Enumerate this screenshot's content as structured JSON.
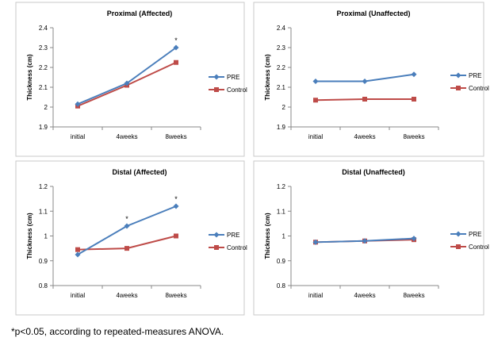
{
  "colors": {
    "pre": "#4A7EBB",
    "control": "#BE4B48",
    "axis": "#888888",
    "frame": "#C8C8C8"
  },
  "footnote": "*p<0.05, according to repeated-measures  ANOVA.",
  "chart_data": [
    {
      "type": "line",
      "title": "Proximal (Affected)",
      "xlabel": "",
      "ylabel": "Thickness (cm)",
      "categories": [
        "initial",
        "4weeks",
        "8weeks"
      ],
      "ylim": [
        1.9,
        2.4
      ],
      "yticks": [
        "1.9",
        "2",
        "2.1",
        "2.2",
        "2.3",
        "2.4"
      ],
      "series": [
        {
          "name": "PRE",
          "values": [
            2.015,
            2.12,
            2.3
          ]
        },
        {
          "name": "Control",
          "values": [
            2.005,
            2.11,
            2.225
          ]
        }
      ],
      "annotations": [
        {
          "category": "8weeks",
          "text": "*",
          "y": 2.3
        }
      ],
      "legend": "right"
    },
    {
      "type": "line",
      "title": "Proximal (Unaffected)",
      "xlabel": "",
      "ylabel": "Thickness (cm)",
      "categories": [
        "initial",
        "4weeks",
        "8weeks"
      ],
      "ylim": [
        1.9,
        2.4
      ],
      "yticks": [
        "1.9",
        "2",
        "2.1",
        "2.2",
        "2.3",
        "2.4"
      ],
      "series": [
        {
          "name": "PRE",
          "values": [
            2.13,
            2.13,
            2.165
          ]
        },
        {
          "name": "Control",
          "values": [
            2.035,
            2.04,
            2.04
          ]
        }
      ],
      "annotations": [],
      "legend": "right"
    },
    {
      "type": "line",
      "title": "Distal (Affected)",
      "xlabel": "",
      "ylabel": "Thickness (cm)",
      "categories": [
        "initial",
        "4weeks",
        "8weeks"
      ],
      "ylim": [
        0.8,
        1.2
      ],
      "yticks": [
        "0.8",
        "0.9",
        "1",
        "1.1",
        "1.2"
      ],
      "series": [
        {
          "name": "PRE",
          "values": [
            0.925,
            1.04,
            1.12
          ]
        },
        {
          "name": "Control",
          "values": [
            0.945,
            0.95,
            1.0
          ]
        }
      ],
      "annotations": [
        {
          "category": "4weeks",
          "text": "*",
          "y": 1.04
        },
        {
          "category": "8weeks",
          "text": "*",
          "y": 1.12
        }
      ],
      "legend": "right"
    },
    {
      "type": "line",
      "title": "Distal (Unaffected)",
      "xlabel": "",
      "ylabel": "Thickness (cm)",
      "categories": [
        "initial",
        "4weeks",
        "8weeks"
      ],
      "ylim": [
        0.8,
        1.2
      ],
      "yticks": [
        "0.8",
        "0.9",
        "1",
        "1.1",
        "1.2"
      ],
      "series": [
        {
          "name": "PRE",
          "values": [
            0.975,
            0.98,
            0.99
          ]
        },
        {
          "name": "Control",
          "values": [
            0.975,
            0.98,
            0.985
          ]
        }
      ],
      "annotations": [],
      "legend": "right"
    }
  ]
}
